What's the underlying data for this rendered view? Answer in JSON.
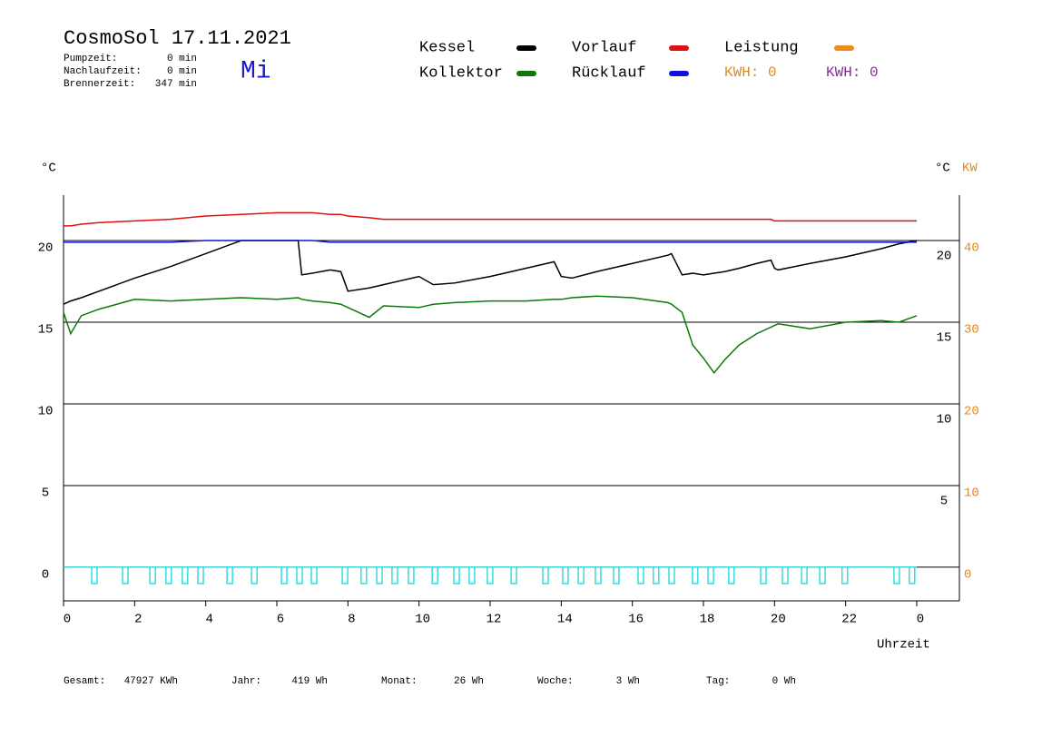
{
  "header": {
    "title": "CosmoSol 17.11.2021",
    "weekday": "Mi",
    "stats": [
      [
        "Pumpzeit:",
        "0 min"
      ],
      [
        "Nachlaufzeit:",
        "0 min"
      ],
      [
        "Brennerzeit:",
        "347 min"
      ]
    ],
    "kwh_orange": "KWH: 0",
    "kwh_purple": "KWH: 0"
  },
  "chart_data": {
    "type": "line",
    "ylabel": "°C",
    "ylabel_right": "°C",
    "y2label": "KW",
    "xlabel": "Uhrzeit",
    "x": [
      0,
      0.2,
      0.5,
      1,
      2,
      3,
      4,
      5,
      6,
      6.6,
      6.7,
      7,
      7.5,
      7.8,
      8,
      8.6,
      9,
      10,
      10.4,
      11,
      12,
      13,
      13.8,
      14,
      14.3,
      15,
      16,
      17,
      17.1,
      17.4,
      17.7,
      18,
      18.3,
      18.6,
      19,
      19.5,
      19.9,
      20,
      20.1,
      21,
      22,
      23,
      23.5,
      24
    ],
    "xlim": [
      0,
      25.2
    ],
    "xticks": [
      0,
      2,
      4,
      6,
      8,
      10,
      12,
      14,
      16,
      18,
      20,
      22,
      {
        "value": 24,
        "label": "0"
      }
    ],
    "ylim": [
      -2.06,
      22.78
    ],
    "yticks": [
      0,
      5,
      10,
      15,
      20
    ],
    "y2lim": [
      -4.12,
      45.56
    ],
    "y2ticks": [
      0,
      10,
      20,
      30,
      40
    ],
    "y2color": "#e08a1e",
    "grid": true,
    "series": [
      {
        "name": "Kessel",
        "color": "#000000",
        "values": [
          16.1,
          16.3,
          16.5,
          16.9,
          17.7,
          18.4,
          19.2,
          20.0,
          20.0,
          20.0,
          17.9,
          18.0,
          18.2,
          18.1,
          16.9,
          17.1,
          17.3,
          17.8,
          17.3,
          17.4,
          17.8,
          18.3,
          18.7,
          17.8,
          17.7,
          18.1,
          18.6,
          19.1,
          19.2,
          17.9,
          18.0,
          17.9,
          18.0,
          18.1,
          18.3,
          18.6,
          18.8,
          18.3,
          18.2,
          18.6,
          19.0,
          19.5,
          19.8,
          20.0
        ]
      },
      {
        "name": "Kollektor",
        "color": "#0a7a0a",
        "values": [
          15.6,
          14.3,
          15.4,
          15.8,
          16.4,
          16.3,
          16.4,
          16.5,
          16.4,
          16.5,
          16.4,
          16.3,
          16.2,
          16.1,
          15.9,
          15.3,
          16.0,
          15.9,
          16.1,
          16.2,
          16.3,
          16.3,
          16.4,
          16.4,
          16.5,
          16.6,
          16.5,
          16.2,
          16.1,
          15.6,
          13.6,
          12.8,
          11.9,
          12.7,
          13.6,
          14.3,
          14.7,
          14.8,
          14.9,
          14.6,
          15.0,
          15.1,
          15.0,
          15.4
        ]
      },
      {
        "name": "Vorlauf",
        "color": "#dd1111",
        "values": [
          20.9,
          20.9,
          21.0,
          21.1,
          21.2,
          21.3,
          21.5,
          21.6,
          21.7,
          21.7,
          21.7,
          21.7,
          21.6,
          21.6,
          21.5,
          21.4,
          21.3,
          21.3,
          21.3,
          21.3,
          21.3,
          21.3,
          21.3,
          21.3,
          21.3,
          21.3,
          21.3,
          21.3,
          21.3,
          21.3,
          21.3,
          21.3,
          21.3,
          21.3,
          21.3,
          21.3,
          21.3,
          21.2,
          21.2,
          21.2,
          21.2,
          21.2,
          21.2,
          21.2
        ]
      },
      {
        "name": "Rücklauf",
        "color": "#1111dd",
        "values": [
          19.9,
          19.9,
          19.9,
          19.9,
          19.9,
          19.9,
          20.0,
          20.0,
          20.0,
          20.0,
          20.0,
          20.0,
          19.9,
          19.9,
          19.9,
          19.9,
          19.9,
          19.9,
          19.9,
          19.9,
          19.9,
          19.9,
          19.9,
          19.9,
          19.9,
          19.9,
          19.9,
          19.9,
          19.9,
          19.9,
          19.9,
          19.9,
          19.9,
          19.9,
          19.9,
          19.9,
          19.9,
          19.9,
          19.9,
          19.9,
          19.9,
          19.9,
          19.9,
          19.9
        ]
      },
      {
        "name": "Leistung",
        "color": "#f08a1e",
        "axis": "y2",
        "values": [
          null,
          null,
          null,
          null,
          null,
          null,
          null,
          null,
          null,
          null,
          null,
          null,
          null,
          null,
          null,
          null,
          null,
          null,
          null,
          null,
          null,
          null,
          null,
          null,
          null,
          null,
          null,
          null,
          null,
          null,
          null,
          null,
          null,
          null,
          null,
          null,
          null,
          null,
          null,
          null,
          null,
          null,
          null,
          null
        ]
      }
    ],
    "pump": {
      "color": "#33dddd",
      "x": [
        0.79,
        1.66,
        2.43,
        2.88,
        3.34,
        3.78,
        4.6,
        5.29,
        6.13,
        6.56,
        6.97,
        7.84,
        8.37,
        8.81,
        9.24,
        9.7,
        10.37,
        10.98,
        11.41,
        11.92,
        12.59,
        13.48,
        14.04,
        14.48,
        14.96,
        15.47,
        16.16,
        16.59,
        17.03,
        17.69,
        18.13,
        18.71,
        19.61,
        20.22,
        20.76,
        21.27,
        21.9,
        23.36,
        23.79
      ],
      "values": [
        -1,
        -1,
        -1,
        -1,
        -1,
        -1,
        -1,
        -1,
        -1,
        -1,
        -1,
        -1,
        -1,
        -1,
        -1,
        -1,
        -1,
        -1,
        -1,
        -1,
        -1,
        -1,
        -1,
        -1,
        -1,
        -1,
        -1,
        -1,
        -1,
        -1,
        -1,
        -1,
        -1,
        -1,
        -1,
        -1,
        -1,
        -1,
        -1
      ]
    }
  },
  "footer": [
    [
      "Gesamt:",
      "47927 KWh"
    ],
    [
      "Jahr:",
      "419 Wh"
    ],
    [
      "Monat:",
      "26 Wh"
    ],
    [
      "Woche:",
      "3 Wh"
    ],
    [
      "Tag:",
      "0 Wh"
    ]
  ]
}
